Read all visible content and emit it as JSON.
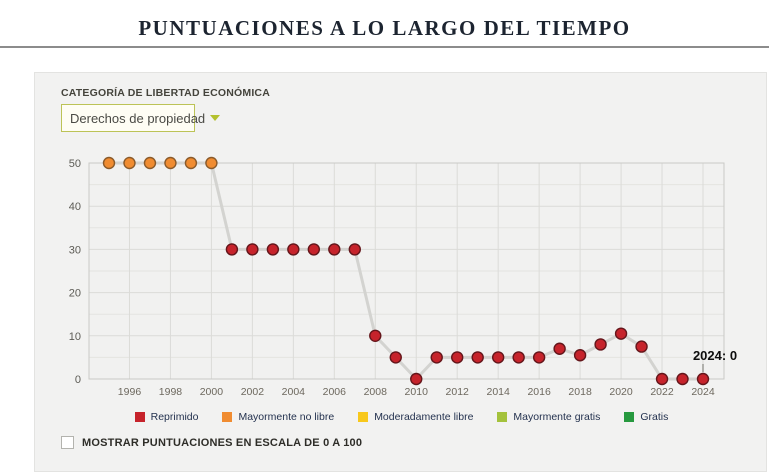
{
  "header": {
    "title": "PUNTUACIONES A LO LARGO DEL TIEMPO"
  },
  "filter": {
    "label": "CATEGORÍA DE LIBERTAD ECONÓMICA",
    "selected": "Derechos de propiedad"
  },
  "chart_data": {
    "type": "line",
    "title": "",
    "x": [
      1995,
      1996,
      1997,
      1998,
      1999,
      2000,
      2001,
      2002,
      2003,
      2004,
      2005,
      2006,
      2007,
      2008,
      2009,
      2010,
      2011,
      2012,
      2013,
      2014,
      2015,
      2016,
      2017,
      2018,
      2019,
      2020,
      2021,
      2022,
      2023,
      2024
    ],
    "values": [
      50,
      50,
      50,
      50,
      50,
      50,
      30,
      30,
      30,
      30,
      30,
      30,
      30,
      10,
      5,
      0,
      5,
      5,
      5,
      5,
      5,
      5,
      7,
      5.5,
      8,
      10.5,
      7.5,
      0,
      0,
      0
    ],
    "ylim": [
      0,
      50
    ],
    "yticks": [
      0,
      10,
      20,
      30,
      40,
      50
    ],
    "xticks": [
      1996,
      1998,
      2000,
      2002,
      2004,
      2006,
      2008,
      2010,
      2012,
      2014,
      2016,
      2018,
      2020,
      2022,
      2024
    ],
    "grid": true,
    "legend_position": "bottom",
    "annotation": {
      "text": "2024: 0",
      "year": 2024,
      "value": 0
    },
    "category_thresholds": [
      50,
      60,
      70,
      80
    ],
    "line_color": "#d3d3d0",
    "grid_major_color": "#dbdbd8",
    "grid_minor_color": "#e4e4e1",
    "plot_border_color": "#c9c9c6",
    "ytick_color": "#5c5b55",
    "xtick_color": "#6d685e"
  },
  "legend": [
    {
      "label": "Reprimido",
      "color": "#c6232b",
      "stroke": "#64161b"
    },
    {
      "label": "Mayormente no libre",
      "color": "#f08c31",
      "stroke": "#8a5a2a"
    },
    {
      "label": "Moderadamente libre",
      "color": "#f8c81c",
      "stroke": "#a3820f"
    },
    {
      "label": "Mayormente gratis",
      "color": "#a4c23c",
      "stroke": "#6d8322"
    },
    {
      "label": "Gratis",
      "color": "#27993f",
      "stroke": "#175c25"
    }
  ],
  "scale_toggle": {
    "label": "MOSTRAR PUNTUACIONES EN ESCALA DE 0 A 100",
    "checked": false
  }
}
